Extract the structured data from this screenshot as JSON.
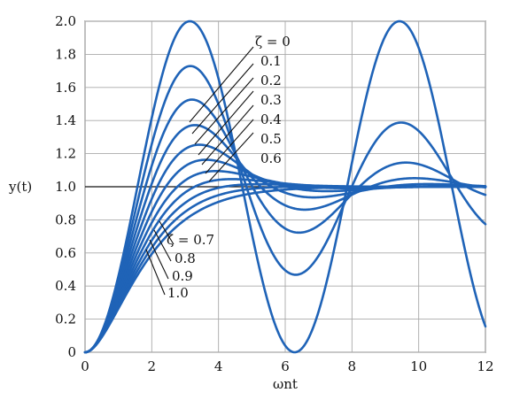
{
  "chart_data": {
    "type": "line",
    "title": "",
    "xlabel": "ωnt",
    "ylabel": "y(t)",
    "xlim": [
      0,
      12
    ],
    "ylim": [
      0,
      2.0
    ],
    "grid": true,
    "legend": "none",
    "colors": {
      "series": "#1f63b7",
      "grid": "#a9a9a9",
      "axis": "#111111",
      "reference_line": "#111111",
      "text": "#111111"
    },
    "x_ticks": [
      0,
      2,
      4,
      6,
      8,
      10,
      12
    ],
    "y_ticks": [
      0,
      0.2,
      0.4,
      0.6,
      0.8,
      1.0,
      1.2,
      1.4,
      1.6,
      1.8,
      2.0
    ],
    "x_tick_labels": [
      "0",
      "2",
      "4",
      "6",
      "8",
      "10",
      "12"
    ],
    "y_tick_labels": [
      "0",
      "0.2",
      "0.4",
      "0.6",
      "0.8",
      "1.0",
      "1.2",
      "1.4",
      "1.6",
      "1.8",
      "2.0"
    ],
    "reference_line": {
      "y": 1.0
    },
    "annotations": {
      "underdamped": [
        "ζ = 0",
        "0.1",
        "0.2",
        "0.3",
        "0.4",
        "0.5",
        "0.6"
      ],
      "damped": [
        "ζ = 0.7",
        "0.8",
        "0.9",
        "1.0"
      ]
    },
    "series": [
      {
        "name": "ζ = 0",
        "zeta": 0.0,
        "x": [
          0,
          0.5,
          1,
          1.5,
          2,
          2.5,
          3,
          3.5,
          4,
          4.5,
          5,
          5.5,
          6,
          6.5,
          7,
          7.5,
          8,
          8.5,
          9,
          9.5,
          10,
          10.5,
          11,
          11.5,
          12
        ],
        "y": [
          0,
          0.122,
          0.46,
          0.929,
          1.416,
          1.801,
          1.99,
          1.936,
          1.654,
          1.211,
          0.716,
          0.292,
          0.04,
          0.024,
          0.246,
          0.653,
          1.146,
          1.602,
          1.911,
          1.997,
          1.839,
          1.476,
          1.004,
          0.546,
          0.156
        ]
      },
      {
        "name": "0.1",
        "zeta": 0.1,
        "x": [
          0,
          0.5,
          1,
          1.5,
          2,
          2.5,
          3,
          3.5,
          4,
          4.5,
          5,
          5.5,
          6,
          6.5,
          7,
          7.5,
          8,
          8.5,
          9,
          9.5,
          10,
          10.5,
          11,
          11.5,
          12
        ],
        "y": [
          0,
          0.118,
          0.432,
          0.853,
          1.275,
          1.596,
          1.732,
          1.657,
          1.421,
          1.126,
          0.866,
          0.698,
          0.644,
          0.691,
          0.818,
          0.99,
          1.167,
          1.315,
          1.395,
          1.386,
          1.29,
          1.133,
          0.962,
          0.826,
          0.757
        ]
      },
      {
        "name": "0.2",
        "zeta": 0.2,
        "x": [
          0,
          0.5,
          1,
          1.5,
          2,
          2.5,
          3,
          3.5,
          4,
          4.5,
          5,
          5.5,
          6,
          6.5,
          7,
          7.5,
          8,
          8.5,
          9,
          9.5,
          10,
          10.5,
          11,
          11.5,
          12
        ],
        "y": [
          0,
          0.114,
          0.407,
          0.786,
          1.154,
          1.417,
          1.525,
          1.469,
          1.3,
          1.109,
          0.978,
          0.935,
          0.967,
          1.028,
          1.071,
          1.075,
          1.044,
          1.0,
          0.966,
          0.958,
          0.977,
          1.005,
          1.024,
          1.024,
          1.008
        ]
      },
      {
        "name": "0.3",
        "zeta": 0.3,
        "x": [
          0,
          0.5,
          1,
          1.5,
          2,
          2.5,
          3,
          3.5,
          4,
          4.5,
          5,
          5.5,
          6,
          6.5,
          7,
          7.5,
          8,
          8.5,
          9,
          9.5,
          10,
          10.5,
          11,
          11.5,
          12
        ],
        "y": [
          0,
          0.11,
          0.385,
          0.726,
          1.048,
          1.261,
          1.337,
          1.296,
          1.191,
          1.088,
          1.027,
          1.006,
          1.004,
          1.006,
          1.005,
          1.002,
          1.0,
          0.999,
          0.999,
          1.0,
          1.0,
          1.0,
          1.0,
          1.0,
          1.0
        ]
      },
      {
        "name": "0.4",
        "zeta": 0.4,
        "x": [
          0,
          0.5,
          1,
          1.5,
          2,
          2.5,
          3,
          3.5,
          4,
          4.5,
          5,
          5.5,
          6,
          6.5,
          7,
          7.5,
          8,
          8.5,
          9,
          9.5,
          10,
          10.5,
          11,
          11.5,
          12
        ],
        "y": [
          0,
          0.107,
          0.364,
          0.673,
          0.955,
          1.14,
          1.22,
          1.212,
          1.152,
          1.081,
          1.028,
          1.002,
          0.994,
          0.995,
          0.998,
          1.0,
          1.0,
          1.0,
          1.0,
          1.0,
          1.0,
          1.0,
          1.0,
          1.0,
          1.0
        ]
      },
      {
        "name": "0.5",
        "zeta": 0.5,
        "x": [
          0,
          0.5,
          1,
          1.5,
          2,
          2.5,
          3,
          3.5,
          4,
          4.5,
          5,
          5.5,
          6,
          6.5,
          7,
          7.5,
          8,
          8.5,
          9,
          9.5,
          10,
          10.5,
          11,
          11.5,
          12
        ],
        "y": [
          0,
          0.103,
          0.34,
          0.617,
          0.867,
          1.028,
          1.108,
          1.135,
          1.117,
          1.077,
          1.035,
          1.008,
          0.995,
          0.991,
          0.994,
          0.998,
          1.0,
          1.0,
          1.0,
          1.0,
          1.0,
          1.0,
          1.0,
          1.0,
          1.0
        ]
      },
      {
        "name": "0.6",
        "zeta": 0.6,
        "x": [
          0,
          0.5,
          1,
          1.5,
          2,
          2.5,
          3,
          3.5,
          4,
          4.5,
          5,
          5.5,
          6,
          6.5,
          7,
          7.5,
          8,
          8.5,
          9,
          9.5,
          10,
          10.5,
          11,
          11.5,
          12
        ],
        "y": [
          0,
          0.099,
          0.316,
          0.565,
          0.79,
          0.944,
          1.03,
          1.066,
          1.07,
          1.056,
          1.036,
          1.018,
          1.006,
          0.999,
          0.997,
          0.997,
          0.998,
          0.999,
          1.0,
          1.0,
          1.0,
          1.0,
          1.0,
          1.0,
          1.0
        ]
      },
      {
        "name": "ζ = 0.7",
        "zeta": 0.7,
        "x": [
          0,
          0.5,
          1,
          1.5,
          2,
          2.5,
          3,
          3.5,
          4,
          4.5,
          5,
          5.5,
          6,
          6.5,
          7,
          7.5,
          8,
          8.5,
          9,
          9.5,
          10,
          10.5,
          11,
          11.5,
          12
        ],
        "y": [
          0,
          0.094,
          0.29,
          0.515,
          0.713,
          0.858,
          0.955,
          1.01,
          1.032,
          1.035,
          1.029,
          1.02,
          1.011,
          1.005,
          1.002,
          1.0,
          1.0,
          1.0,
          1.0,
          1.0,
          1.0,
          1.0,
          1.0,
          1.0,
          1.0
        ]
      },
      {
        "name": "0.8",
        "zeta": 0.8,
        "x": [
          0,
          0.5,
          1,
          1.5,
          2,
          2.5,
          3,
          3.5,
          4,
          4.5,
          5,
          5.5,
          6,
          6.5,
          7,
          7.5,
          8,
          8.5,
          9,
          9.5,
          10,
          10.5,
          11,
          11.5,
          12
        ],
        "y": [
          0,
          0.089,
          0.265,
          0.47,
          0.648,
          0.785,
          0.883,
          0.948,
          0.987,
          1.006,
          1.013,
          1.012,
          1.009,
          1.006,
          1.003,
          1.001,
          1.0,
          1.0,
          1.0,
          1.0,
          1.0,
          1.0,
          1.0,
          1.0,
          1.0
        ]
      },
      {
        "name": "0.9",
        "zeta": 0.9,
        "x": [
          0,
          0.5,
          1,
          1.5,
          2,
          2.5,
          3,
          3.5,
          4,
          4.5,
          5,
          5.5,
          6,
          6.5,
          7,
          7.5,
          8,
          8.5,
          9,
          9.5,
          10,
          10.5,
          11,
          11.5,
          12
        ],
        "y": [
          0,
          0.083,
          0.245,
          0.43,
          0.594,
          0.723,
          0.818,
          0.887,
          0.933,
          0.964,
          0.982,
          0.992,
          0.997,
          0.999,
          1.0,
          1.0,
          1.0,
          1.0,
          1.0,
          1.0,
          1.0,
          1.0,
          1.0,
          1.0,
          1.0
        ]
      },
      {
        "name": "1.0",
        "zeta": 1.0,
        "x": [
          0,
          0.5,
          1,
          1.5,
          2,
          2.5,
          3,
          3.5,
          4,
          4.5,
          5,
          5.5,
          6,
          6.5,
          7,
          7.5,
          8,
          8.5,
          9,
          9.5,
          10,
          10.5,
          11,
          11.5,
          12
        ],
        "y": [
          0,
          0.09,
          0.264,
          0.442,
          0.594,
          0.713,
          0.801,
          0.864,
          0.908,
          0.939,
          0.96,
          0.973,
          0.983,
          0.989,
          0.993,
          0.996,
          0.997,
          0.998,
          0.999,
          0.999,
          1.0,
          1.0,
          1.0,
          1.0,
          1.0
        ]
      }
    ]
  }
}
